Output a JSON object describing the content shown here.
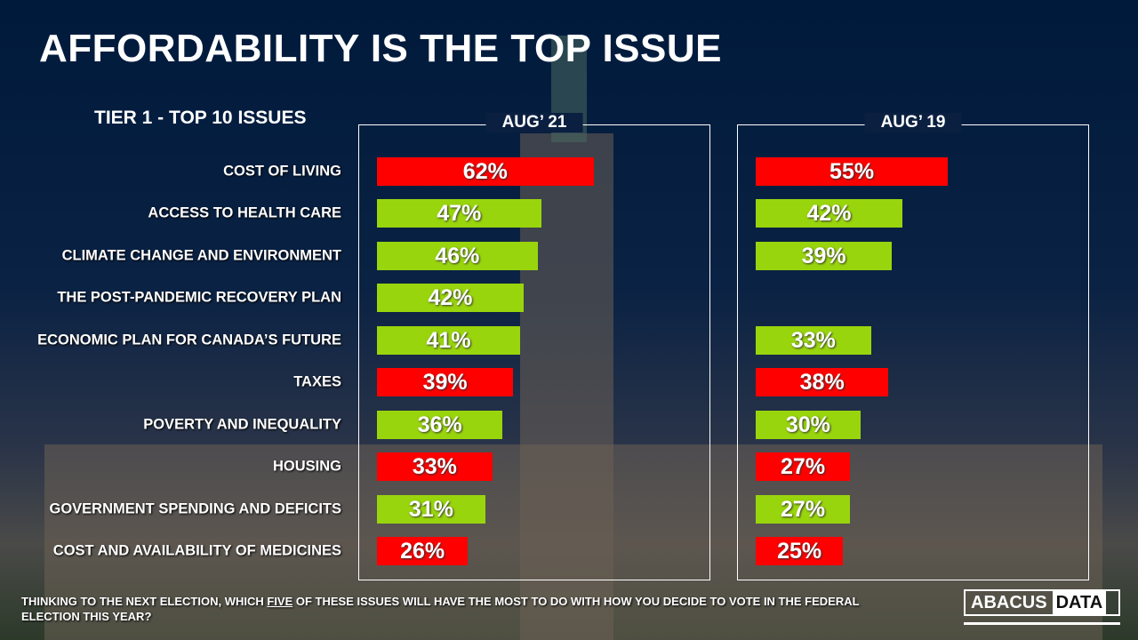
{
  "title": "AFFORDABILITY IS THE TOP ISSUE",
  "subtitle": "TIER 1 - TOP 10 ISSUES",
  "footnote_pre": "THINKING TO THE NEXT ELECTION, WHICH ",
  "footnote_em": "FIVE",
  "footnote_post": " OF THESE ISSUES WILL HAVE THE MOST TO DO WITH HOW YOU DECIDE TO VOTE IN THE FEDERAL ELECTION THIS YEAR?",
  "logo": {
    "left": "ABACUS",
    "right": "DATA"
  },
  "colors": {
    "red": "#ff0000",
    "green": "#99d50c",
    "background": "#001a3c"
  },
  "chart_data": {
    "type": "bar",
    "orientation": "horizontal",
    "categories": [
      "COST OF LIVING",
      "ACCESS TO HEALTH CARE",
      "CLIMATE CHANGE AND ENVIRONMENT",
      "THE POST-PANDEMIC RECOVERY PLAN",
      "ECONOMIC PLAN FOR CANADA’S FUTURE",
      "TAXES",
      "POVERTY AND INEQUALITY",
      "HOUSING",
      "GOVERNMENT SPENDING AND DEFICITS",
      "COST AND AVAILABILITY OF MEDICINES"
    ],
    "bar_colors": [
      "red",
      "green",
      "green",
      "green",
      "green",
      "red",
      "green",
      "red",
      "green",
      "red"
    ],
    "series": [
      {
        "name": "AUG’ 21",
        "values": [
          62,
          47,
          46,
          42,
          41,
          39,
          36,
          33,
          31,
          26
        ]
      },
      {
        "name": "AUG’ 19",
        "values": [
          55,
          42,
          39,
          null,
          33,
          38,
          30,
          27,
          27,
          25
        ]
      }
    ],
    "unit": "%"
  }
}
